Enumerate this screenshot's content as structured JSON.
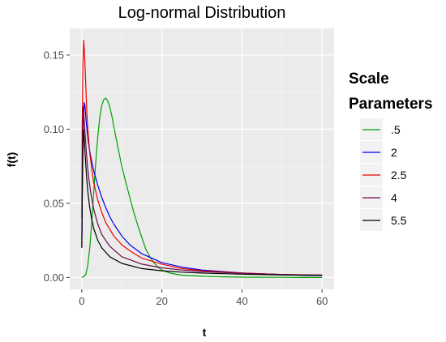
{
  "chart_data": {
    "type": "line",
    "title": "Log-normal Distribution",
    "xlabel": "t",
    "ylabel": "f(t)",
    "xlim": [
      -3,
      63
    ],
    "ylim": [
      -0.008,
      0.168
    ],
    "x_ticks": [
      0,
      20,
      40,
      60
    ],
    "x_tick_labels": [
      "0",
      "20",
      "40",
      "60"
    ],
    "y_ticks": [
      0.0,
      0.05,
      0.1,
      0.15
    ],
    "y_tick_labels": [
      "0.00",
      "0.05",
      "0.10",
      "0.15"
    ],
    "grid": true,
    "legend_title": "Scale Parameters",
    "legend_position": "right",
    "series": [
      {
        "name": ".5",
        "color": "#00a000",
        "x": [
          0,
          0.5,
          1,
          1.5,
          2,
          2.5,
          3,
          3.5,
          4,
          4.5,
          5,
          5.5,
          6,
          6.5,
          7,
          7.5,
          8,
          8.5,
          9,
          10,
          11,
          12,
          13,
          14,
          15,
          16,
          17,
          18,
          19,
          20,
          22,
          25,
          30,
          35,
          40,
          45,
          50,
          55,
          60
        ],
        "y": [
          0,
          0.0005,
          0.002,
          0.008,
          0.02,
          0.037,
          0.058,
          0.078,
          0.095,
          0.108,
          0.116,
          0.12,
          0.121,
          0.119,
          0.115,
          0.109,
          0.102,
          0.095,
          0.088,
          0.075,
          0.064,
          0.054,
          0.044,
          0.035,
          0.027,
          0.019,
          0.014,
          0.01,
          0.007,
          0.005,
          0.003,
          0.0015,
          0.0008,
          0.0004,
          0.0002,
          0.0001,
          0.0001,
          0,
          0
        ]
      },
      {
        "name": "2",
        "color": "#0000ee",
        "x": [
          0.05,
          0.2,
          0.4,
          0.6,
          0.8,
          1,
          1.3,
          1.6,
          2,
          2.5,
          3,
          4,
          5,
          6,
          7,
          8,
          10,
          12,
          15,
          20,
          25,
          30,
          35,
          40,
          45,
          50,
          55,
          60
        ],
        "y": [
          0.03,
          0.08,
          0.105,
          0.118,
          0.116,
          0.108,
          0.1,
          0.092,
          0.085,
          0.078,
          0.072,
          0.062,
          0.054,
          0.047,
          0.041,
          0.036,
          0.028,
          0.022,
          0.016,
          0.01,
          0.007,
          0.005,
          0.004,
          0.003,
          0.0025,
          0.002,
          0.0015,
          0.0013
        ]
      },
      {
        "name": "2.5",
        "color": "#ee0000",
        "x": [
          0.02,
          0.1,
          0.3,
          0.5,
          0.7,
          0.9,
          1.1,
          1.3,
          1.6,
          2,
          2.5,
          3,
          4,
          5,
          6,
          8,
          10,
          12,
          15,
          20,
          25,
          30,
          40,
          50,
          60
        ],
        "y": [
          0.04,
          0.1,
          0.145,
          0.16,
          0.15,
          0.136,
          0.122,
          0.11,
          0.097,
          0.084,
          0.073,
          0.064,
          0.052,
          0.044,
          0.037,
          0.028,
          0.022,
          0.018,
          0.013,
          0.009,
          0.006,
          0.0045,
          0.003,
          0.002,
          0.0015
        ]
      },
      {
        "name": "4",
        "color": "#6a0a4a",
        "x": [
          0.01,
          0.1,
          0.2,
          0.35,
          0.5,
          0.7,
          0.9,
          1.1,
          1.4,
          1.8,
          2.3,
          3,
          4,
          5,
          7,
          10,
          15,
          20,
          25,
          30,
          40,
          50,
          60
        ],
        "y": [
          0.02,
          0.06,
          0.09,
          0.115,
          0.11,
          0.102,
          0.094,
          0.086,
          0.076,
          0.066,
          0.056,
          0.046,
          0.036,
          0.029,
          0.021,
          0.014,
          0.009,
          0.0065,
          0.005,
          0.004,
          0.0028,
          0.002,
          0.0016
        ]
      },
      {
        "name": "5.5",
        "color": "#000000",
        "x": [
          0.01,
          0.1,
          0.25,
          0.45,
          0.6,
          0.8,
          1,
          1.3,
          1.6,
          2,
          2.5,
          3,
          4,
          5,
          7,
          10,
          15,
          20,
          25,
          30,
          40,
          50,
          60
        ],
        "y": [
          0.02,
          0.05,
          0.08,
          0.1,
          0.094,
          0.085,
          0.076,
          0.065,
          0.056,
          0.047,
          0.039,
          0.033,
          0.025,
          0.02,
          0.014,
          0.0095,
          0.006,
          0.0045,
          0.0036,
          0.003,
          0.0022,
          0.0017,
          0.0014
        ]
      }
    ]
  }
}
